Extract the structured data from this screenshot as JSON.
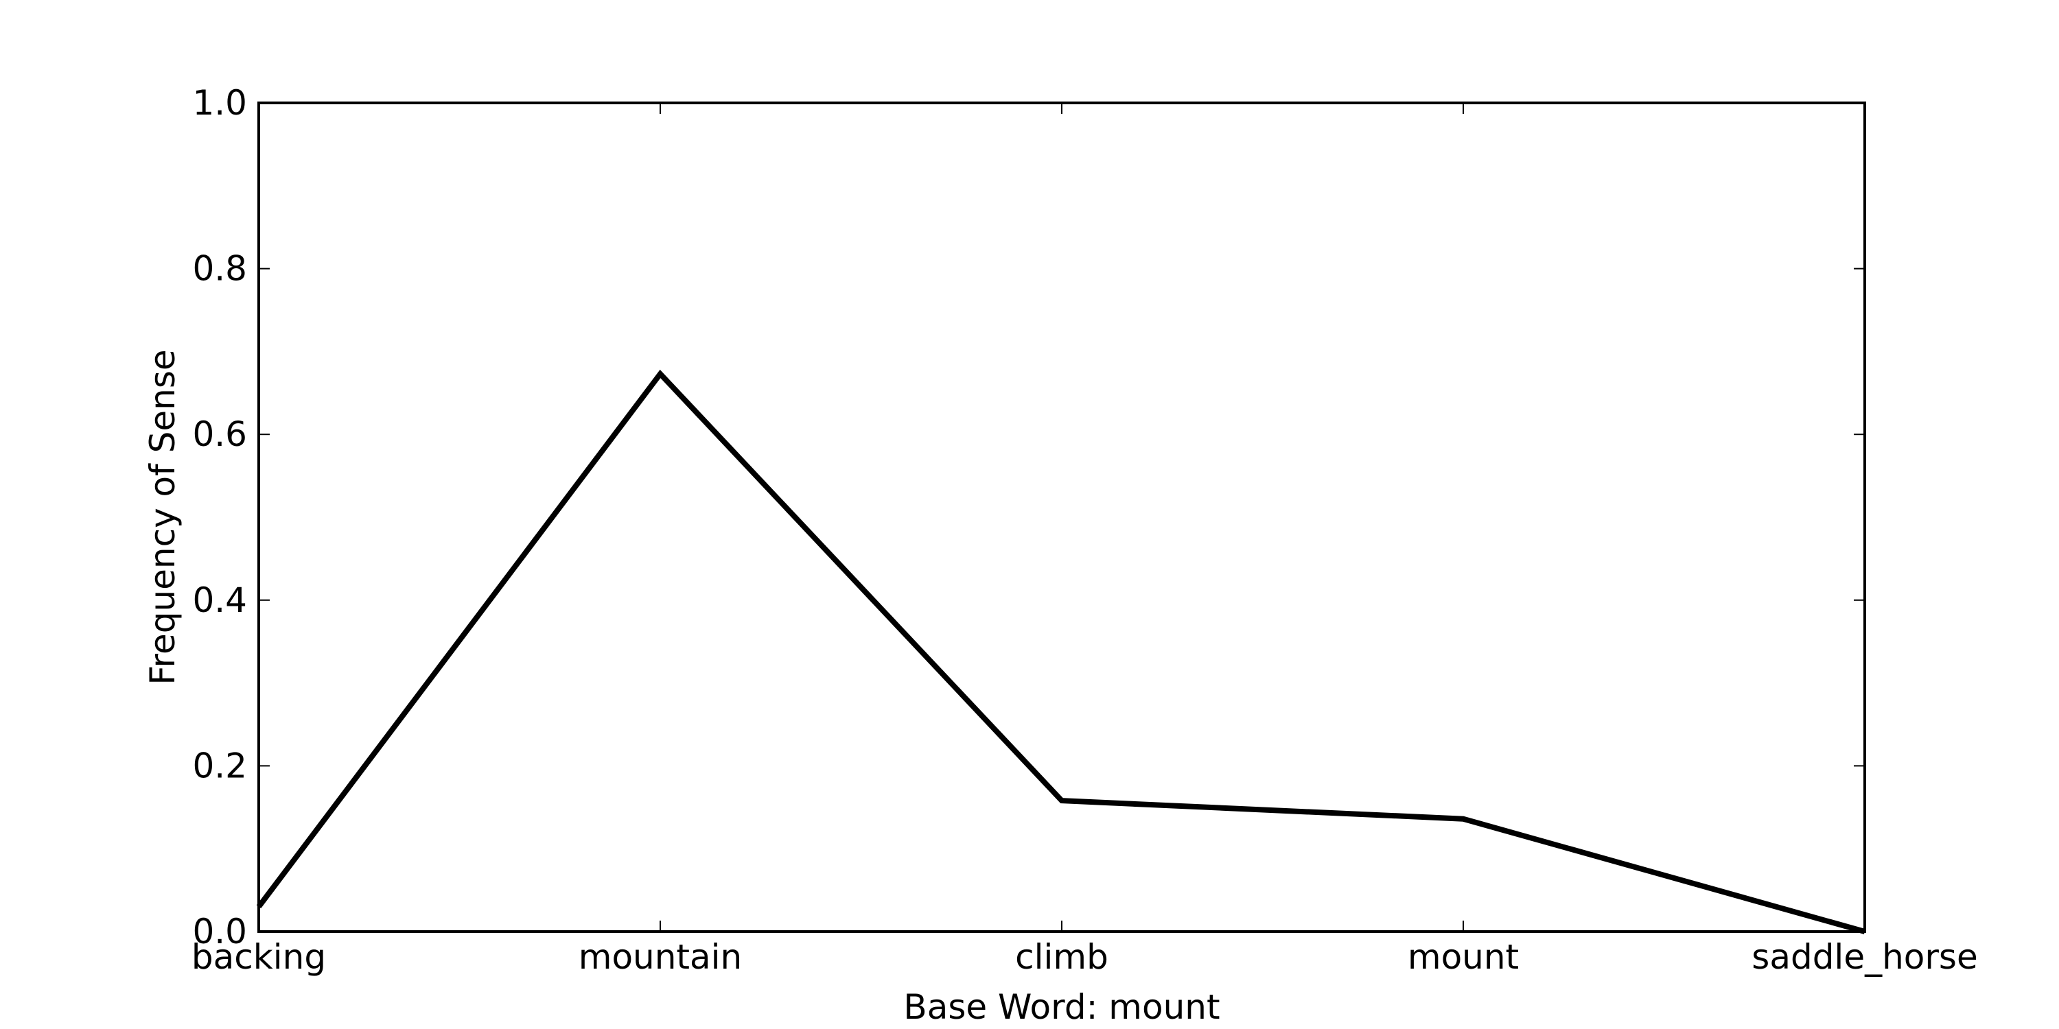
{
  "chart_data": {
    "type": "line",
    "categories": [
      "backing",
      "mountain",
      "climb",
      "mount",
      "saddle_horse"
    ],
    "series": [
      {
        "values": [
          0.03,
          0.673,
          0.158,
          0.136,
          0.0
        ]
      }
    ],
    "xlabel": "Base Word: mount",
    "ylabel": "Frequency of Sense",
    "ylim": [
      0.0,
      1.0
    ],
    "yticks": [
      "0.0",
      "0.2",
      "0.4",
      "0.6",
      "0.8",
      "1.0"
    ],
    "grid": false,
    "line_color": "#000000"
  }
}
